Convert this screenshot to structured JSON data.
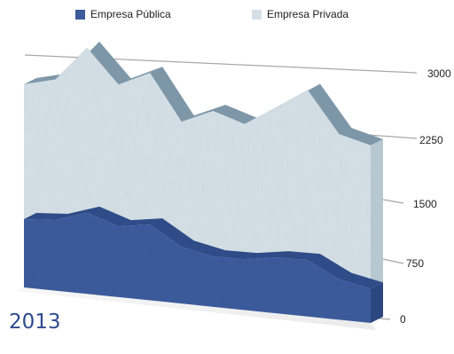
{
  "chart_data": {
    "type": "area",
    "stacked": true,
    "three_d": true,
    "title": "",
    "xlabel": "",
    "ylabel": "",
    "ylim": [
      0,
      3000
    ],
    "y_ticks": [
      0,
      750,
      1500,
      2250,
      3000
    ],
    "y_tick_labels": [
      "0",
      "750",
      "1500",
      "2250",
      "3000"
    ],
    "grid": true,
    "legend_position": "top",
    "annotation": "2013",
    "series": [
      {
        "name": "Empresa Pública",
        "color": "#3b5b9c",
        "values": [
          750,
          780,
          900,
          790,
          850,
          640,
          570,
          580,
          640,
          650,
          470,
          400
        ]
      },
      {
        "name": "Empresa Privada",
        "color": "#d4e0e6",
        "values": [
          1480,
          1550,
          1830,
          1580,
          1700,
          1410,
          1650,
          1540,
          1720,
          1960,
          1680,
          1670
        ]
      }
    ],
    "colors": {
      "public_top": "#2f4c88",
      "private_top": "#7e97a8",
      "grid": "#a8a8a8"
    }
  }
}
